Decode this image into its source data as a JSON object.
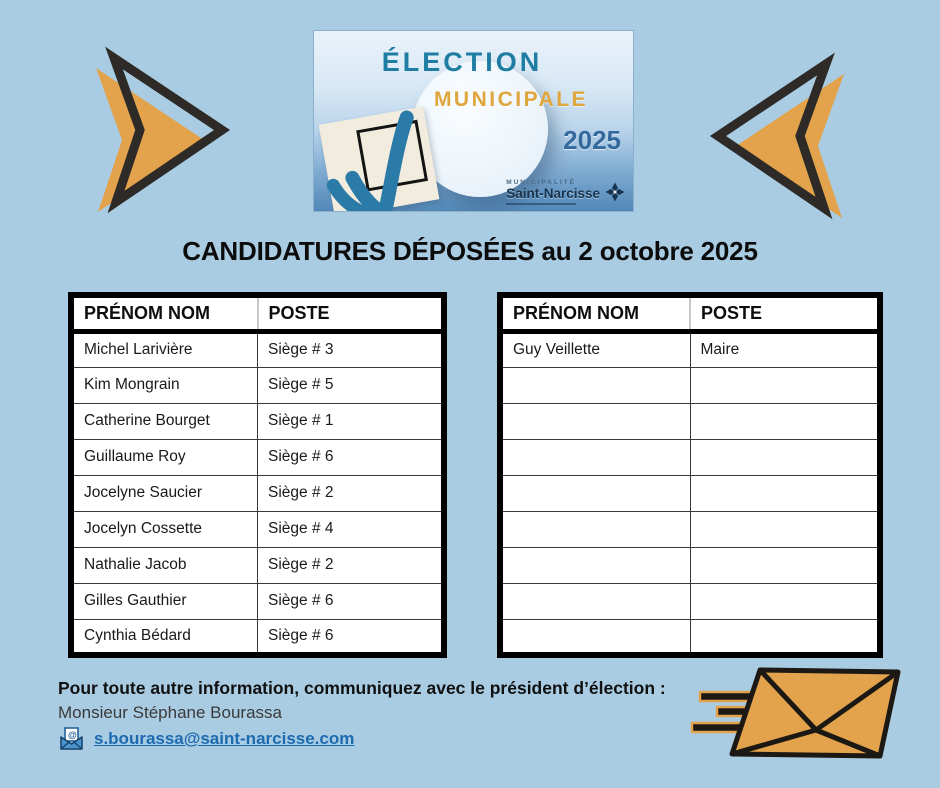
{
  "banner": {
    "title_line1": "ÉLECTION",
    "title_line2": "MUNICIPALE",
    "year": "2025",
    "org_small": "MUNICIPALITÉ",
    "org_name": "Saint-Narcisse"
  },
  "heading": "CANDIDATURES DÉPOSÉES au 2 octobre 2025",
  "tables": {
    "headers": [
      "PRÉNOM NOM",
      "POSTE"
    ],
    "left": {
      "rows": [
        [
          "Michel Larivière",
          "Siège # 3"
        ],
        [
          "Kim Mongrain",
          "Siège # 5"
        ],
        [
          "Catherine Bourget",
          "Siège # 1"
        ],
        [
          "Guillaume Roy",
          "Siège # 6"
        ],
        [
          "Jocelyne Saucier",
          "Siège # 2"
        ],
        [
          "Jocelyn Cossette",
          "Siège # 4"
        ],
        [
          "Nathalie Jacob",
          "Siège # 2"
        ],
        [
          "Gilles Gauthier",
          "Siège # 6"
        ],
        [
          "Cynthia Bédard",
          "Siège # 6"
        ]
      ]
    },
    "right": {
      "rows": [
        [
          "Guy Veillette",
          "Maire"
        ],
        [
          "",
          ""
        ],
        [
          "",
          ""
        ],
        [
          "",
          ""
        ],
        [
          "",
          ""
        ],
        [
          "",
          ""
        ],
        [
          "",
          ""
        ],
        [
          "",
          ""
        ],
        [
          "",
          ""
        ]
      ]
    }
  },
  "footer": {
    "line1": "Pour toute autre information, communiquez avec le président d’élection :",
    "line2": "Monsieur Stéphane Bourassa",
    "email": "s.bourassa@saint-narcisse.com"
  },
  "colors": {
    "background": "#a9cce3",
    "arrow_orange": "#e2a34c",
    "arrow_outline": "#2d2a28",
    "banner_teal": "#1f7da4",
    "banner_gold": "#dfa63e",
    "banner_blue": "#33699c",
    "link_blue": "#1d6ab1",
    "table_border": "#000000"
  }
}
